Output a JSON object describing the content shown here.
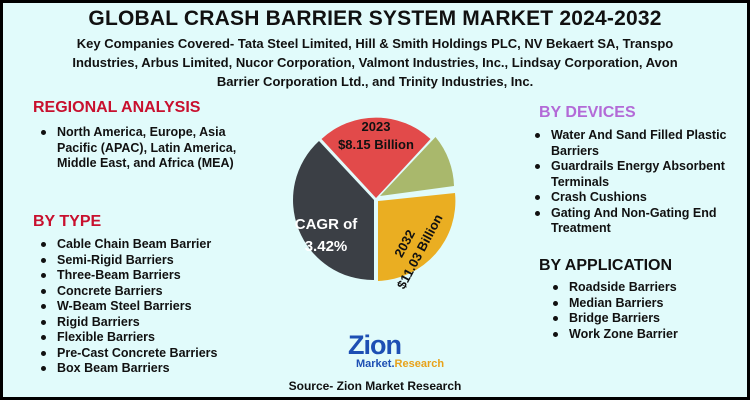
{
  "title": "GLOBAL CRASH BARRIER SYSTEM MARKET 2024-2032",
  "subtitle": {
    "line1": "Key Companies Covered- Tata Steel Limited, Hill & Smith Holdings PLC, NV Bekaert SA, Transpo",
    "line2": "Industries, Arbus Limited, Nucor Corporation, Valmont Industries, Inc., Lindsay Corporation, Avon",
    "line3": "Barrier Corporation Ltd., and Trinity Industries, Inc."
  },
  "regional": {
    "heading": "REGIONAL ANALYSIS",
    "items": [
      "North America, Europe, Asia Pacific (APAC), Latin America, Middle East, and Africa (MEA)"
    ]
  },
  "by_type": {
    "heading": "BY TYPE",
    "items": [
      "Cable Chain Beam Barrier",
      "Semi-Rigid Barriers",
      "Three-Beam Barriers",
      "Concrete Barriers",
      "W-Beam Steel Barriers",
      "Rigid Barriers",
      "Flexible Barriers",
      "Pre-Cast Concrete Barriers",
      "Box Beam Barriers"
    ]
  },
  "by_devices": {
    "heading": "BY DEVICES",
    "items": [
      "Water And Sand Filled Plastic Barriers",
      "Guardrails Energy Absorbent Terminals",
      "Crash Cushions",
      "Gating And Non-Gating End Treatment"
    ]
  },
  "by_application": {
    "heading": "BY APPLICATION",
    "items": [
      "Roadside Barriers",
      "Median Barriers",
      "Bridge Barriers",
      "Work Zone Barrier"
    ]
  },
  "pie": {
    "year_2023": "2023",
    "value_2023": "$8.15 Billion",
    "cagr_label": "CAGR of",
    "cagr_value": "3.42%",
    "year_2032": "2032",
    "value_2032": "$11.03 Billion",
    "colors": {
      "red": "#e24a4a",
      "dark": "#3b3f45",
      "yellow": "#eaae22",
      "green": "#a9b86c"
    }
  },
  "logo": {
    "main": "Zion",
    "sub_a": "Market",
    "sub_b": "Research"
  },
  "source": "Source- Zion Market Research"
}
